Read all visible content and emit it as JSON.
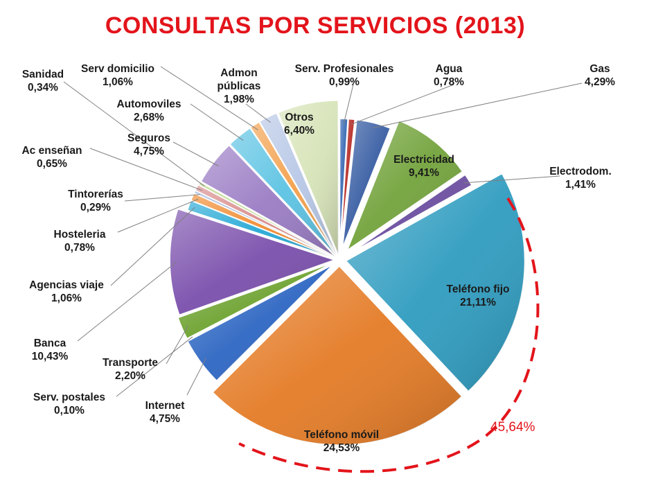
{
  "chart_data": {
    "type": "pie",
    "title": "CONSULTAS POR SERVICIOS (2013)",
    "slices": [
      {
        "name": "Serv. Profesionales",
        "value": 0.99,
        "label": "0,99%",
        "color": "#2f63b0"
      },
      {
        "name": "Agua",
        "value": 0.78,
        "label": "0,78%",
        "color": "#b82a24"
      },
      {
        "name": "Gas",
        "value": 4.29,
        "label": "4,29%",
        "color": "#3a5fa4"
      },
      {
        "name": "Electricidad",
        "value": 9.41,
        "label": "9,41%",
        "color": "#73a33c"
      },
      {
        "name": "Electrodom.",
        "value": 1.41,
        "label": "1,41%",
        "color": "#6c4fa0"
      },
      {
        "name": "Teléfono fijo",
        "value": 21.11,
        "label": "21,11%",
        "color": "#2f9cc0"
      },
      {
        "name": "Teléfono móvil",
        "value": 24.53,
        "label": "24,53%",
        "color": "#e47b26"
      },
      {
        "name": "Internet",
        "value": 4.75,
        "label": "4,75%",
        "color": "#2d66c2"
      },
      {
        "name": "Serv. postales",
        "value": 0.1,
        "label": "0,10%",
        "color": "#9e3f3f"
      },
      {
        "name": "Transporte",
        "value": 2.2,
        "label": "2,20%",
        "color": "#6fa332"
      },
      {
        "name": "Banca",
        "value": 10.43,
        "label": "10,43%",
        "color": "#7a4fac"
      },
      {
        "name": "Agencias viaje",
        "value": 1.06,
        "label": "1,06%",
        "color": "#27a9d6"
      },
      {
        "name": "Hosteleria",
        "value": 0.78,
        "label": "0,78%",
        "color": "#f08c32"
      },
      {
        "name": "Tintorerías",
        "value": 0.29,
        "label": "0,29%",
        "color": "#9bb0d8"
      },
      {
        "name": "Ac enseñan",
        "value": 0.65,
        "label": "0,65%",
        "color": "#d98c8c"
      },
      {
        "name": "Sanidad",
        "value": 0.34,
        "label": "0,34%",
        "color": "#b9d48a"
      },
      {
        "name": "Seguros",
        "value": 4.75,
        "label": "4,75%",
        "color": "#9a7cc4"
      },
      {
        "name": "Automoviles",
        "value": 2.68,
        "label": "2,68%",
        "color": "#5cc3e3"
      },
      {
        "name": "Serv domicilio",
        "value": 1.06,
        "label": "1,06%",
        "color": "#f3a04c"
      },
      {
        "name": "Admon públicas",
        "value": 1.98,
        "label": "1,98%",
        "color": "#b7c7e6"
      },
      {
        "name": "Otros",
        "value": 6.4,
        "label": "6,40%",
        "color": "#d7e4b8"
      }
    ],
    "highlight": {
      "label": "45,64%",
      "color": "#e3141b"
    }
  }
}
